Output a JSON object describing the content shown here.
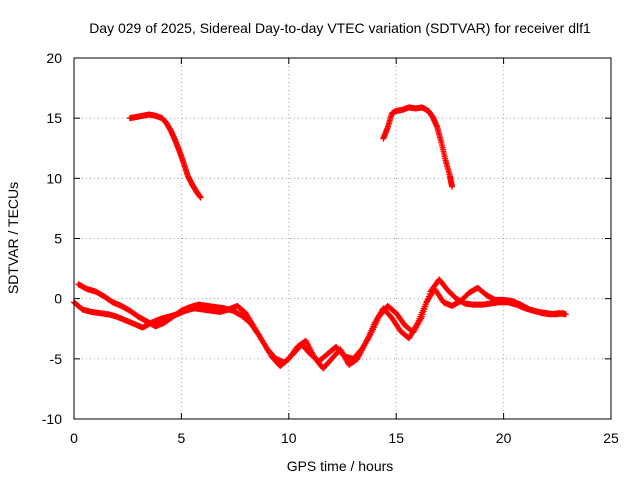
{
  "chart_data": {
    "type": "scatter",
    "title": "Day 029 of 2025, Sidereal Day-to-day VTEC variation (SDTVAR) for receiver dlf1",
    "xlabel": "GPS time / hours",
    "ylabel": "SDTVAR / TECUs",
    "xlim": [
      0,
      25
    ],
    "ylim": [
      -10,
      20
    ],
    "xticks": [
      0,
      5,
      10,
      15,
      20,
      25
    ],
    "yticks": [
      -10,
      -5,
      0,
      5,
      10,
      15,
      20
    ],
    "xtick_labels": [
      "0",
      "5",
      "10",
      "15",
      "20",
      "25"
    ],
    "ytick_labels": [
      "-10",
      "-5",
      "0",
      "5",
      "10",
      "15",
      "20"
    ],
    "grid": true,
    "legend": "none",
    "marker": "+",
    "color": "#ff0000",
    "series": [
      {
        "name": "band-a",
        "x": [
          0.2,
          0.6,
          1.0,
          1.4,
          1.8,
          2.2,
          2.6,
          3.0,
          3.4,
          3.8,
          4.2,
          4.6,
          5.0,
          5.4,
          5.8,
          6.2,
          6.6,
          7.0,
          7.4,
          7.8,
          8.2,
          8.6,
          9.0,
          9.4,
          9.8,
          10.2,
          10.6,
          11.0,
          11.4,
          11.8,
          12.2,
          12.6,
          13.0,
          13.4,
          13.8,
          14.2,
          14.6,
          15.0,
          15.4,
          15.8,
          16.2,
          16.6,
          17.0,
          17.4,
          17.8,
          18.2,
          18.6,
          19.0,
          19.4,
          19.8,
          20.2,
          20.6,
          21.0,
          21.4,
          21.8,
          22.2,
          22.6,
          22.9
        ],
        "y": [
          1.2,
          0.8,
          0.6,
          0.2,
          -0.3,
          -0.6,
          -1.0,
          -1.5,
          -1.9,
          -2.3,
          -2.0,
          -1.5,
          -1.0,
          -0.7,
          -0.5,
          -0.6,
          -0.7,
          -0.8,
          -1.0,
          -1.4,
          -2.0,
          -3.0,
          -4.2,
          -5.0,
          -5.3,
          -4.6,
          -3.8,
          -4.6,
          -5.2,
          -4.6,
          -4.0,
          -4.8,
          -5.0,
          -4.2,
          -3.0,
          -1.5,
          -0.6,
          -1.2,
          -2.2,
          -2.8,
          -1.5,
          0.6,
          1.6,
          0.7,
          0.0,
          -0.4,
          -0.5,
          -0.5,
          -0.4,
          -0.3,
          -0.3,
          -0.5,
          -0.8,
          -1.0,
          -1.2,
          -1.3,
          -1.2,
          -1.3
        ]
      },
      {
        "name": "band-b",
        "x": [
          0.0,
          0.4,
          0.8,
          1.2,
          1.6,
          2.0,
          2.4,
          2.8,
          3.2,
          3.6,
          4.0,
          4.4,
          4.8,
          5.2,
          5.6,
          6.0,
          6.4,
          6.8,
          7.2,
          7.6,
          8.0,
          8.4,
          8.8,
          9.2,
          9.6,
          10.0,
          10.4,
          10.8,
          11.2,
          11.6,
          12.0,
          12.4,
          12.8,
          13.2,
          13.6,
          14.0,
          14.4,
          14.8,
          15.2,
          15.6,
          16.0,
          16.4,
          16.8,
          17.2,
          17.6,
          18.0,
          18.4,
          18.8,
          19.2,
          19.6,
          20.0,
          20.4,
          20.8,
          21.2,
          21.6,
          22.0,
          22.4,
          22.8
        ],
        "y": [
          -0.3,
          -0.9,
          -1.1,
          -1.2,
          -1.3,
          -1.5,
          -1.8,
          -2.1,
          -2.4,
          -2.0,
          -1.7,
          -1.5,
          -1.3,
          -1.0,
          -0.8,
          -0.9,
          -1.0,
          -1.1,
          -0.9,
          -0.6,
          -1.2,
          -2.4,
          -3.6,
          -4.8,
          -5.6,
          -5.0,
          -4.0,
          -3.5,
          -4.9,
          -5.8,
          -5.0,
          -4.2,
          -5.5,
          -5.0,
          -3.6,
          -2.0,
          -0.8,
          -1.6,
          -2.7,
          -3.3,
          -2.0,
          -0.3,
          0.8,
          -0.3,
          -0.6,
          -0.2,
          0.5,
          0.9,
          0.3,
          -0.1,
          -0.1,
          -0.2,
          -0.5,
          -0.9,
          -1.1,
          -1.2,
          -1.3,
          -1.2
        ]
      },
      {
        "name": "arc-early",
        "x": [
          2.6,
          2.9,
          3.2,
          3.5,
          3.8,
          4.1,
          4.3,
          4.5,
          4.7,
          4.9,
          5.1,
          5.3,
          5.5,
          5.7,
          5.9
        ],
        "y": [
          15.0,
          15.1,
          15.2,
          15.3,
          15.2,
          15.0,
          14.6,
          14.0,
          13.2,
          12.3,
          11.3,
          10.2,
          9.5,
          8.9,
          8.4
        ]
      },
      {
        "name": "arc-late",
        "x": [
          14.4,
          14.6,
          14.8,
          15.0,
          15.3,
          15.6,
          15.9,
          16.2,
          16.5,
          16.7,
          16.9,
          17.1,
          17.3,
          17.5,
          17.6
        ],
        "y": [
          13.3,
          14.2,
          15.4,
          15.6,
          15.7,
          15.9,
          15.8,
          15.9,
          15.6,
          15.1,
          14.3,
          13.0,
          11.5,
          10.2,
          9.3
        ]
      }
    ]
  }
}
